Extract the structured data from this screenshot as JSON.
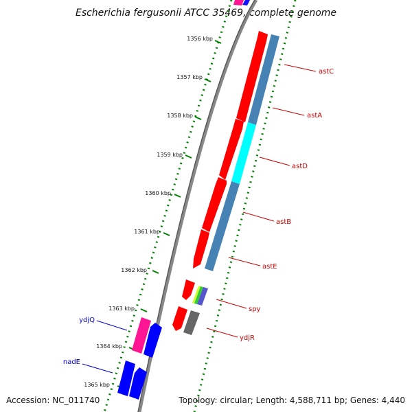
{
  "title": "Escherichia fergusonii ATCC 35469, complete genome",
  "footer": {
    "accession": "Accession: NC_011740",
    "summary": "Topology: circular; Length: 4,588,711 bp; Genes: 4,440"
  },
  "colors": {
    "forward_cds": "#ff0000",
    "reverse_cds": "#0000ff",
    "pink_feature": "#ff1493",
    "cog_steelblue": "#4682b4",
    "cog_cyan": "#00ffff",
    "cog_gray": "#666666",
    "scale_dots": "#008000",
    "label_red": "#cc0000",
    "label_blue": "#0000cc"
  },
  "scale_ticks": [
    "1356 kbp",
    "1357 kbp",
    "1358 kbp",
    "1359 kbp",
    "1360 kbp",
    "1361 kbp",
    "1362 kbp",
    "1363 kbp",
    "1364 kbp",
    "1365 kbp"
  ],
  "genes": [
    {
      "name": "astC",
      "strand": "+",
      "color": "red"
    },
    {
      "name": "astA",
      "strand": "+",
      "color": "red"
    },
    {
      "name": "astD",
      "strand": "+",
      "color": "red"
    },
    {
      "name": "astB",
      "strand": "+",
      "color": "red"
    },
    {
      "name": "astE",
      "strand": "+",
      "color": "red"
    },
    {
      "name": "spy",
      "strand": "+",
      "color": "red"
    },
    {
      "name": "ydjR",
      "strand": "+",
      "color": "red"
    },
    {
      "name": "ydjQ",
      "strand": "-",
      "color": "blue"
    },
    {
      "name": "nadE",
      "strand": "-",
      "color": "blue"
    }
  ]
}
